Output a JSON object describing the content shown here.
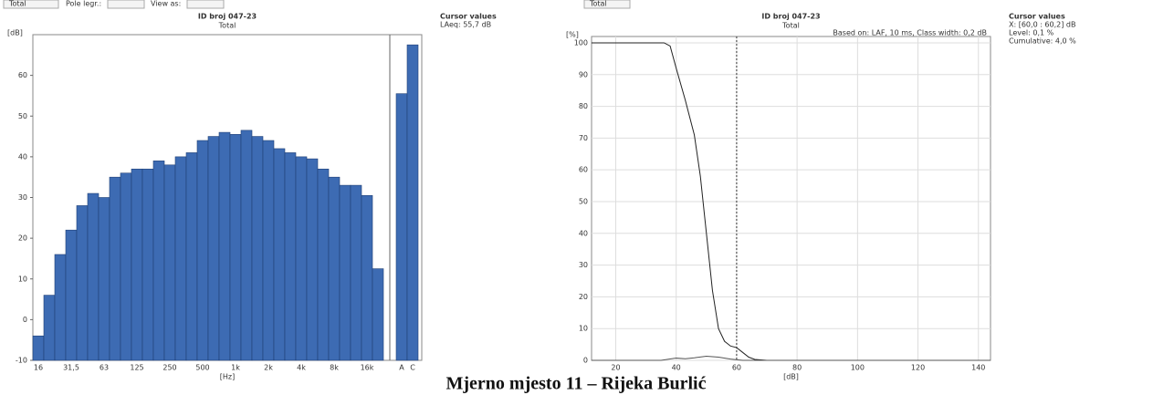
{
  "controls": {
    "left_select": "Total",
    "left_label_1": "Pole legr.:",
    "left_label_2": "View as:",
    "right_select": "Total"
  },
  "chart_data": [
    {
      "type": "bar",
      "title": "ID broj 047-23",
      "subtitle": "Total",
      "y_label": "[dB]",
      "x_label": "[Hz]",
      "categories": [
        "16",
        null,
        null,
        "31,5",
        null,
        null,
        "63",
        null,
        null,
        "125",
        null,
        null,
        "250",
        null,
        null,
        "500",
        null,
        null,
        "1k",
        null,
        null,
        "2k",
        null,
        null,
        "4k",
        null,
        null,
        "8k",
        null,
        null,
        "16k",
        null,
        "A",
        "C"
      ],
      "values": [
        -4,
        6,
        16,
        22,
        28,
        31,
        30,
        35,
        36,
        37,
        37,
        39,
        38,
        40,
        41,
        44,
        45,
        46,
        45.5,
        46.5,
        45,
        44,
        42,
        41,
        40,
        39.5,
        37,
        35,
        33,
        33,
        30.5,
        12.5,
        55.5,
        67.5
      ],
      "color": "#3d6bb3",
      "ylim": [
        -10,
        70
      ],
      "yticks": [
        -10,
        0,
        10,
        20,
        30,
        40,
        50,
        60
      ],
      "grid": false,
      "cursor_title": "Cursor values",
      "cursor_lines": [
        "LAeq: 55,7 dB"
      ]
    },
    {
      "type": "line",
      "title": "ID broj 047-23",
      "subtitle": "Total",
      "y_label": "[%]",
      "x_label": "[dB]",
      "annotation": "Based on: LAF, 10 ms, Class width: 0,2 dB",
      "series": [
        {
          "color": "#222222",
          "x": [
            12,
            36,
            38,
            40,
            43,
            46,
            48,
            50,
            52,
            54,
            56,
            58,
            60,
            62,
            64,
            66,
            70,
            144
          ],
          "values": [
            100,
            100,
            99,
            92,
            82,
            71,
            58,
            40,
            22,
            10,
            6,
            4.5,
            4,
            2.5,
            1,
            0.3,
            0,
            0
          ]
        },
        {
          "color": "#555555",
          "x": [
            12,
            35,
            40,
            43,
            46,
            50,
            54,
            58,
            62,
            144
          ],
          "values": [
            0,
            0,
            0.7,
            0.5,
            0.8,
            1.3,
            1,
            0.4,
            0,
            0
          ]
        }
      ],
      "cursor_x": 60,
      "xlim": [
        12,
        144
      ],
      "xticks": [
        20,
        40,
        60,
        80,
        100,
        120,
        140
      ],
      "ylim": [
        0,
        102
      ],
      "yticks": [
        0,
        10,
        20,
        30,
        40,
        50,
        60,
        70,
        80,
        90,
        100
      ],
      "grid": true,
      "cursor_title": "Cursor values",
      "cursor_lines": [
        "X: [60,0 : 60,2] dB",
        "Level: 0,1 %",
        "Cumulative: 4,0 %"
      ]
    }
  ],
  "caption": "Mjerno mjesto 11 – Rijeka Burlić"
}
